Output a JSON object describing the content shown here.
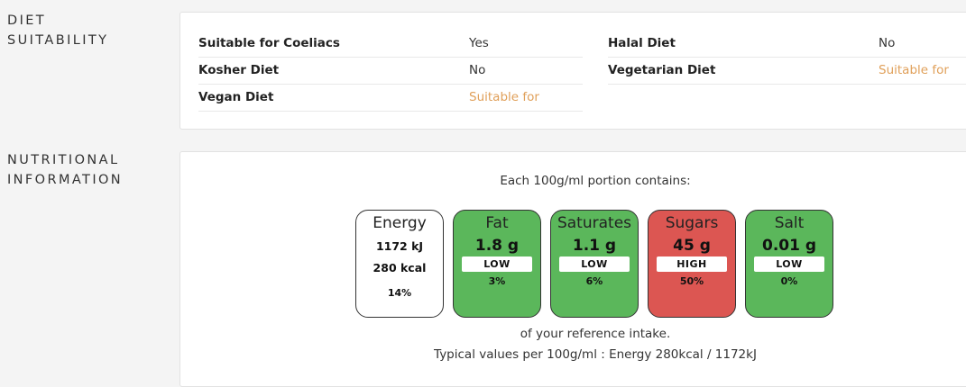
{
  "diet": {
    "title_line1": "DIET",
    "title_line2": "SUITABILITY",
    "left": [
      {
        "label": "Suitable for Coeliacs",
        "value": "Yes"
      },
      {
        "label": "Kosher Diet",
        "value": "No"
      },
      {
        "label": "Vegan Diet",
        "value": "Suitable for"
      }
    ],
    "right": [
      {
        "label": "Halal Diet",
        "value": "No"
      },
      {
        "label": "Vegetarian Diet",
        "value": "Suitable for"
      }
    ]
  },
  "nutrition": {
    "title_line1": "NUTRITIONAL",
    "title_line2": "INFORMATION",
    "portion_note": "Each 100g/ml portion contains:",
    "energy": {
      "name": "Energy",
      "kj": "1172 kJ",
      "kcal": "280 kcal",
      "percent": "14%"
    },
    "tiles": [
      {
        "name": "Fat",
        "amount": "1.8 g",
        "level": "LOW",
        "percent": "3%",
        "color": "#5bb75b"
      },
      {
        "name": "Saturates",
        "amount": "1.1 g",
        "level": "LOW",
        "percent": "6%",
        "color": "#5bb75b"
      },
      {
        "name": "Sugars",
        "amount": "45 g",
        "level": "HIGH",
        "percent": "50%",
        "color": "#dc5652"
      },
      {
        "name": "Salt",
        "amount": "0.01 g",
        "level": "LOW",
        "percent": "0%",
        "color": "#5bb75b"
      }
    ],
    "reference_note": "of your reference intake.",
    "typical_note": "Typical values per 100g/ml : Energy 280kcal / 1172kJ"
  }
}
